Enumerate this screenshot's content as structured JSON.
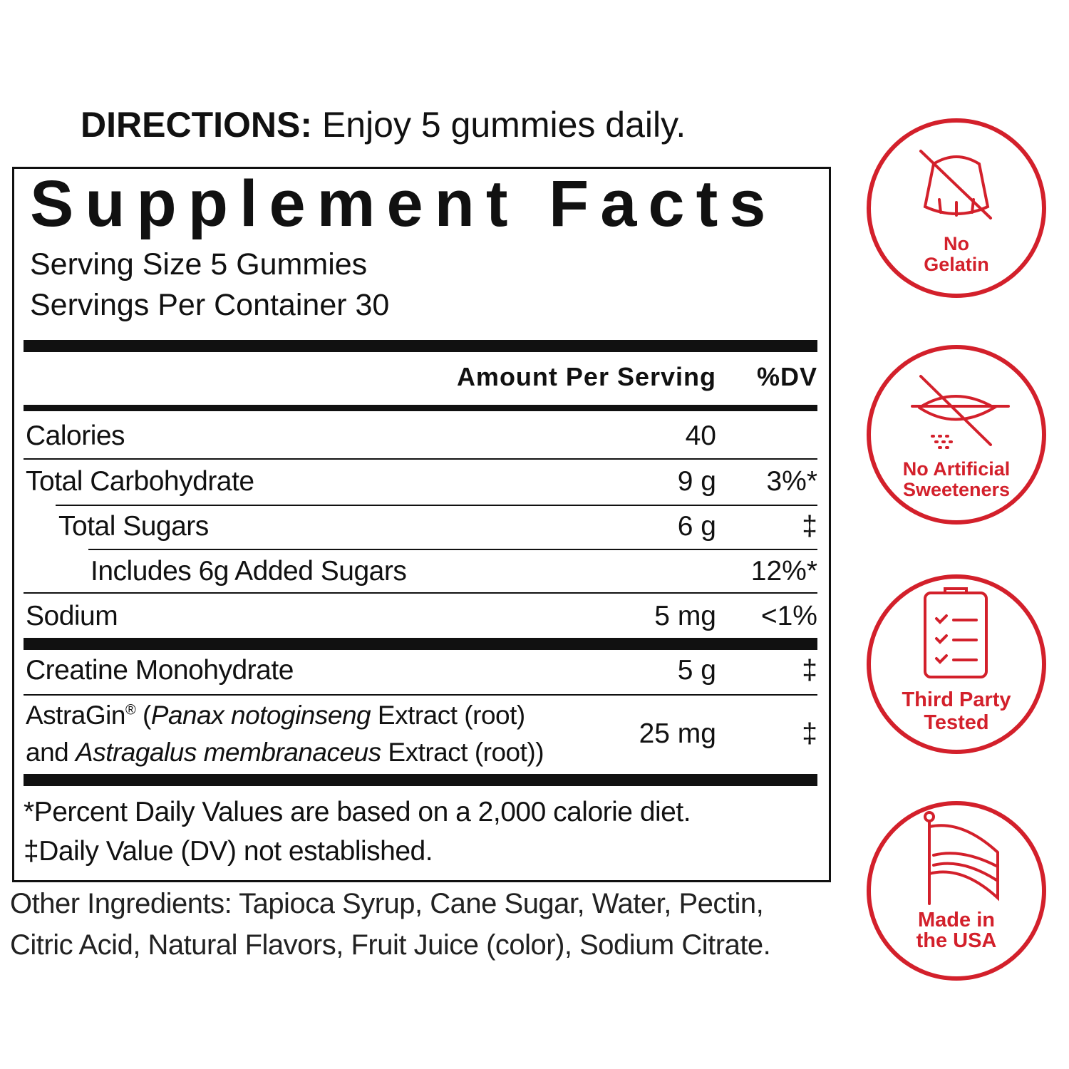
{
  "directions": {
    "label": "DIRECTIONS:",
    "text": "Enjoy 5 gummies daily."
  },
  "facts": {
    "title": "Supplement Facts",
    "serving_size": "Serving Size 5 Gummies",
    "servings_per_container": "Servings Per Container 30",
    "header": {
      "amount": "Amount Per Serving",
      "dv": "%DV"
    },
    "rows": [
      {
        "name": "Calories",
        "amount": "40"
      },
      {
        "name": "Total Carbohydrate",
        "amount": "9 g",
        "dv": "3%*"
      },
      {
        "name": "Total Sugars",
        "amount": "6 g",
        "dv": "‡"
      },
      {
        "name": "Includes 6g Added Sugars",
        "dv": "12%*"
      },
      {
        "name": "Sodium",
        "amount": "5 mg",
        "dv": "<1%"
      },
      {
        "name": "Creatine Monohydrate",
        "amount": "5 g",
        "dv": "‡"
      },
      {
        "name": [
          "AstraGin",
          "®",
          " (",
          "Panax notoginseng",
          " Extract (root)",
          "and ",
          "Astragalus membranaceus",
          " Extract (root))"
        ],
        "amount": "25 mg",
        "dv": "‡"
      }
    ],
    "footnotes": [
      "*Percent Daily Values are based on a 2,000 calorie diet.",
      "‡Daily Value (DV) not established."
    ]
  },
  "other_ingredients": [
    "Other Ingredients: Tapioca Syrup, Cane Sugar, Water, Pectin,",
    "Citric Acid, Natural Flavors, Fruit Juice (color), Sodium Citrate."
  ],
  "badges": [
    {
      "lines": [
        "No",
        "Gelatin"
      ]
    },
    {
      "lines": [
        "No Artificial",
        "Sweeteners"
      ]
    },
    {
      "lines": [
        "Third Party",
        "Tested"
      ]
    },
    {
      "lines": [
        "Made in",
        "the USA"
      ]
    }
  ]
}
